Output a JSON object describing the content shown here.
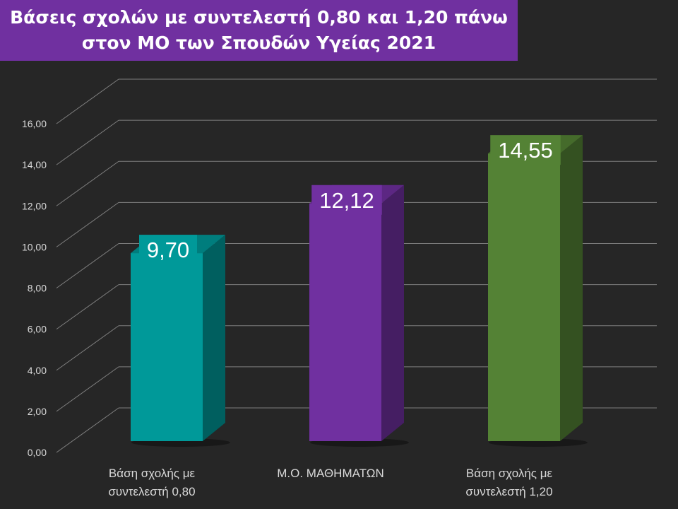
{
  "chart_data": {
    "type": "bar",
    "title_lines": [
      "Βάσεις σχολών με συντελεστή 0,80 και 1,20 πάνω",
      "στον ΜΟ των Σπουδών Υγείας 2021"
    ],
    "categories": [
      [
        "Βάση σχολής με",
        "συντελεστή 0,80"
      ],
      [
        "Μ.Ο. ΜΑΘΗΜΑΤΩΝ"
      ],
      [
        "Βάση σχολής με",
        "συντελεστή 1,20"
      ]
    ],
    "values": [
      9.7,
      12.12,
      14.55
    ],
    "value_labels": [
      "9,70",
      "12,12",
      "14,55"
    ],
    "colors": [
      "#009999",
      "#7030a0",
      "#548235"
    ],
    "yticks": [
      "0,00",
      "2,00",
      "4,00",
      "6,00",
      "8,00",
      "10,00",
      "12,00",
      "14,00",
      "16,00"
    ],
    "ylim": [
      0,
      16
    ],
    "grid": true,
    "legend": false,
    "style": "3d-column"
  }
}
